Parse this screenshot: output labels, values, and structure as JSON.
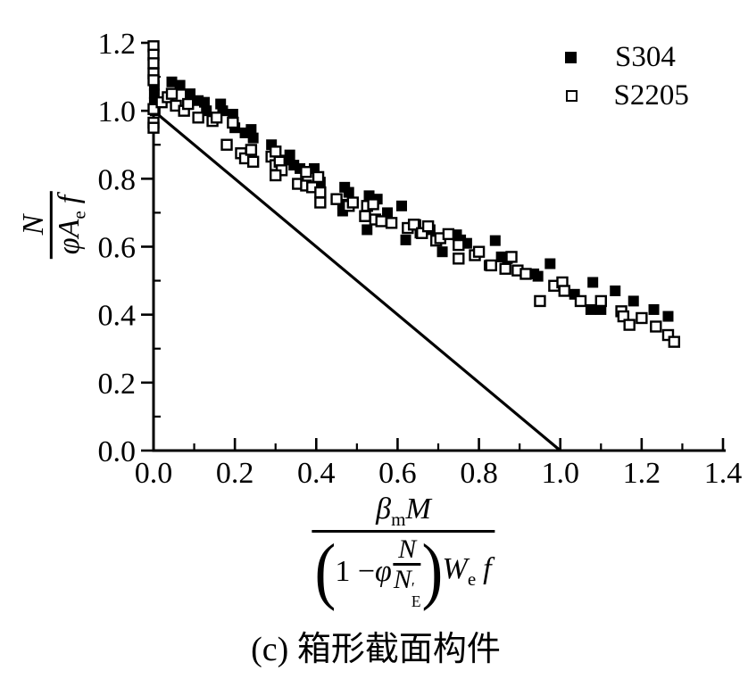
{
  "chart_data": {
    "type": "scatter",
    "title": "",
    "xlabel": "β_m M / ((1 − φ N/N′_E) W_e f)",
    "ylabel": "N / (φ A_e f)",
    "xlim": [
      0,
      1.4
    ],
    "ylim": [
      0,
      1.2
    ],
    "x_major_step": 0.2,
    "x_minor_step": 0.1,
    "y_major_step": 0.2,
    "y_minor_step": 0.1,
    "x_tick_labels": [
      "0.0",
      "0.2",
      "0.4",
      "0.6",
      "0.8",
      "1.0",
      "1.2",
      "1.4"
    ],
    "y_tick_labels": [
      "0.0",
      "0.2",
      "0.4",
      "0.6",
      "0.8",
      "1.0",
      "1.2"
    ],
    "grid": false,
    "legend_position": "top-right",
    "axis_color": "#000000",
    "reference_line": {
      "x1": 0.0,
      "y1": 1.0,
      "x2": 1.0,
      "y2": 0.0
    },
    "series": [
      {
        "name": "S304",
        "marker": "filled-square",
        "color": "#000000",
        "points": [
          [
            0.002,
            1.075
          ],
          [
            0.002,
            1.05
          ],
          [
            0.002,
            1.025
          ],
          [
            0.004,
            1.0
          ],
          [
            0.045,
            1.085
          ],
          [
            0.065,
            1.075
          ],
          [
            0.09,
            1.05
          ],
          [
            0.11,
            1.03
          ],
          [
            0.125,
            1.025
          ],
          [
            0.13,
            1.0
          ],
          [
            0.165,
            1.02
          ],
          [
            0.17,
            1.0
          ],
          [
            0.195,
            0.99
          ],
          [
            0.2,
            0.95
          ],
          [
            0.225,
            0.935
          ],
          [
            0.24,
            0.945
          ],
          [
            0.245,
            0.92
          ],
          [
            0.29,
            0.9
          ],
          [
            0.32,
            0.855
          ],
          [
            0.335,
            0.87
          ],
          [
            0.345,
            0.84
          ],
          [
            0.36,
            0.83
          ],
          [
            0.395,
            0.83
          ],
          [
            0.41,
            0.79
          ],
          [
            0.465,
            0.705
          ],
          [
            0.47,
            0.775
          ],
          [
            0.48,
            0.76
          ],
          [
            0.465,
            0.725
          ],
          [
            0.53,
            0.75
          ],
          [
            0.55,
            0.74
          ],
          [
            0.525,
            0.65
          ],
          [
            0.575,
            0.7
          ],
          [
            0.61,
            0.72
          ],
          [
            0.62,
            0.62
          ],
          [
            0.645,
            0.665
          ],
          [
            0.655,
            0.64
          ],
          [
            0.68,
            0.65
          ],
          [
            0.71,
            0.585
          ],
          [
            0.745,
            0.635
          ],
          [
            0.755,
            0.62
          ],
          [
            0.77,
            0.61
          ],
          [
            0.825,
            0.545
          ],
          [
            0.84,
            0.618
          ],
          [
            0.855,
            0.57
          ],
          [
            0.87,
            0.565
          ],
          [
            0.935,
            0.52
          ],
          [
            0.945,
            0.513
          ],
          [
            0.975,
            0.55
          ],
          [
            1.035,
            0.46
          ],
          [
            1.08,
            0.495
          ],
          [
            1.075,
            0.415
          ],
          [
            1.1,
            0.415
          ],
          [
            1.135,
            0.47
          ],
          [
            1.18,
            0.44
          ],
          [
            1.23,
            0.415
          ],
          [
            1.265,
            0.395
          ]
        ]
      },
      {
        "name": "S2205",
        "marker": "open-square",
        "color": "#000000",
        "points": [
          [
            0.0,
            1.19
          ],
          [
            0.0,
            1.165
          ],
          [
            0.0,
            1.14
          ],
          [
            0.0,
            1.11
          ],
          [
            0.0,
            1.09
          ],
          [
            0.0,
            1.005
          ],
          [
            0.0,
            0.965
          ],
          [
            0.0,
            0.95
          ],
          [
            0.02,
            1.025
          ],
          [
            0.035,
            1.04
          ],
          [
            0.045,
            1.05
          ],
          [
            0.055,
            1.015
          ],
          [
            0.075,
            1.0
          ],
          [
            0.085,
            1.02
          ],
          [
            0.11,
            0.98
          ],
          [
            0.145,
            0.97
          ],
          [
            0.155,
            0.98
          ],
          [
            0.195,
            0.965
          ],
          [
            0.18,
            0.9
          ],
          [
            0.215,
            0.875
          ],
          [
            0.225,
            0.86
          ],
          [
            0.24,
            0.885
          ],
          [
            0.245,
            0.85
          ],
          [
            0.29,
            0.865
          ],
          [
            0.3,
            0.88
          ],
          [
            0.3,
            0.84
          ],
          [
            0.31,
            0.85
          ],
          [
            0.315,
            0.825
          ],
          [
            0.3,
            0.81
          ],
          [
            0.355,
            0.785
          ],
          [
            0.375,
            0.82
          ],
          [
            0.375,
            0.78
          ],
          [
            0.405,
            0.805
          ],
          [
            0.39,
            0.775
          ],
          [
            0.41,
            0.76
          ],
          [
            0.41,
            0.73
          ],
          [
            0.45,
            0.74
          ],
          [
            0.48,
            0.72
          ],
          [
            0.49,
            0.73
          ],
          [
            0.525,
            0.72
          ],
          [
            0.54,
            0.725
          ],
          [
            0.52,
            0.69
          ],
          [
            0.545,
            0.68
          ],
          [
            0.56,
            0.675
          ],
          [
            0.585,
            0.67
          ],
          [
            0.625,
            0.655
          ],
          [
            0.64,
            0.665
          ],
          [
            0.66,
            0.64
          ],
          [
            0.675,
            0.66
          ],
          [
            0.695,
            0.618
          ],
          [
            0.705,
            0.625
          ],
          [
            0.725,
            0.637
          ],
          [
            0.75,
            0.605
          ],
          [
            0.75,
            0.565
          ],
          [
            0.79,
            0.575
          ],
          [
            0.8,
            0.585
          ],
          [
            0.83,
            0.545
          ],
          [
            0.865,
            0.535
          ],
          [
            0.88,
            0.57
          ],
          [
            0.895,
            0.53
          ],
          [
            0.915,
            0.52
          ],
          [
            0.95,
            0.44
          ],
          [
            0.985,
            0.485
          ],
          [
            1.005,
            0.495
          ],
          [
            1.01,
            0.47
          ],
          [
            1.05,
            0.44
          ],
          [
            1.1,
            0.44
          ],
          [
            1.15,
            0.41
          ],
          [
            1.155,
            0.395
          ],
          [
            1.17,
            0.37
          ],
          [
            1.2,
            0.39
          ],
          [
            1.235,
            0.365
          ],
          [
            1.265,
            0.34
          ],
          [
            1.28,
            0.32
          ]
        ]
      }
    ]
  },
  "legend": {
    "items": [
      {
        "label": "S304",
        "marker": "filled-square"
      },
      {
        "label": "S2205",
        "marker": "open-square"
      }
    ]
  },
  "labels": {
    "y_axis": {
      "num": "N",
      "den_phi_A": "φA",
      "den_sub_e": "e",
      "den_f": "f"
    },
    "x_axis": {
      "beta": "β",
      "beta_sub": "m",
      "M": "M",
      "paren_open": "(",
      "one_minus": "1 −",
      "phi": "φ",
      "inner_num": "N",
      "inner_den_N": "N",
      "inner_den_prime": "′",
      "inner_den_sub": "E",
      "paren_close": ")",
      "W": "W",
      "W_sub": "e",
      "f": "f"
    },
    "caption": "(c) 箱形截面构件"
  }
}
